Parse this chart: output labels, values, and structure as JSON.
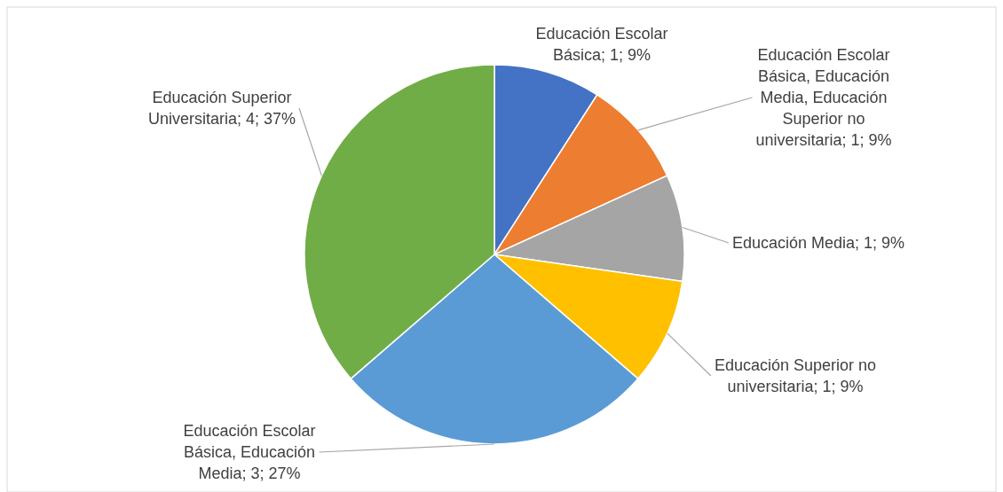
{
  "chart_data": {
    "type": "pie",
    "categories": [
      "Educación Escolar Básica",
      "Educación Escolar Básica, Educación Media, Educación Superior no universitaria",
      "Educación Media",
      "Educación Superior no universitaria",
      "Educación Escolar Básica, Educación Media",
      "Educación Superior Universitaria"
    ],
    "values": [
      1,
      1,
      1,
      1,
      3,
      4
    ],
    "colors": [
      "#4472c4",
      "#ed7d31",
      "#a5a5a5",
      "#ffc000",
      "#5b9bd5",
      "#70ad47"
    ],
    "value_labels": [
      "1; 9%",
      "1; 9%",
      "1; 9%",
      "1; 9%",
      "3; 27%",
      "4; 37%"
    ]
  }
}
